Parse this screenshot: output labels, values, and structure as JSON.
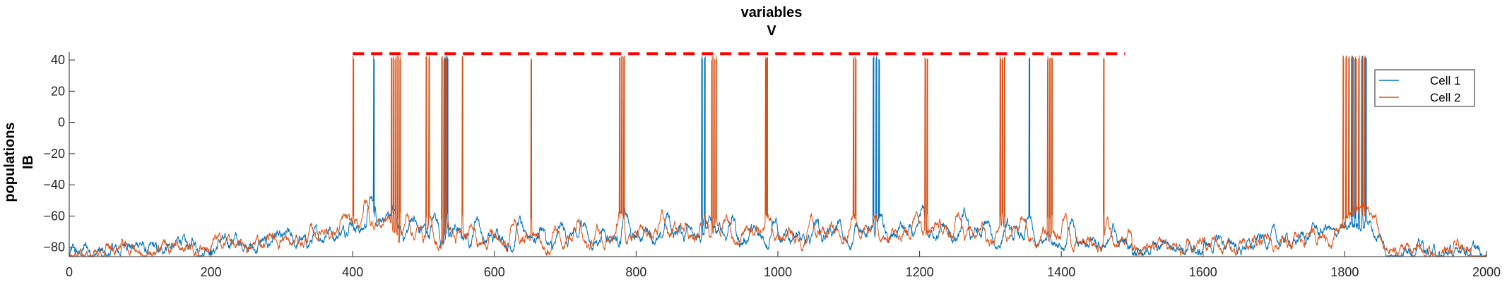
{
  "chart_data": {
    "type": "line",
    "title": [
      "variables",
      "V"
    ],
    "ylabel": [
      "populations",
      "IB"
    ],
    "xlabel": "",
    "xlim": [
      0,
      2000
    ],
    "ylim": [
      -86,
      45
    ],
    "xticks": [
      0,
      200,
      400,
      600,
      800,
      1000,
      1200,
      1400,
      1600,
      1800,
      2000
    ],
    "yticks": [
      -80,
      -60,
      -40,
      -20,
      0,
      20,
      40
    ],
    "grid": false,
    "legend_position": "top-right",
    "series": [
      {
        "name": "Cell 1",
        "color": "#0072BD",
        "baseline_segments": [
          [
            0,
            -86
          ],
          [
            50,
            -82
          ],
          [
            100,
            -80
          ],
          [
            200,
            -79
          ],
          [
            300,
            -76
          ],
          [
            380,
            -72
          ],
          [
            400,
            -68
          ],
          [
            430,
            -62
          ],
          [
            500,
            -72
          ],
          [
            600,
            -76
          ],
          [
            700,
            -76
          ],
          [
            800,
            -74
          ],
          [
            900,
            -72
          ],
          [
            1000,
            -76
          ],
          [
            1100,
            -74
          ],
          [
            1200,
            -72
          ],
          [
            1300,
            -74
          ],
          [
            1400,
            -78
          ],
          [
            1500,
            -80
          ],
          [
            1600,
            -80
          ],
          [
            1700,
            -76
          ],
          [
            1780,
            -70
          ],
          [
            1810,
            -64
          ],
          [
            1840,
            -70
          ],
          [
            1860,
            -82
          ],
          [
            2000,
            -84
          ]
        ],
        "spike_times": [
          430,
          530,
          532,
          534,
          893,
          897,
          1135,
          1139,
          1143,
          1355,
          1810,
          1815,
          1820,
          1825,
          1830
        ]
      },
      {
        "name": "Cell 2",
        "color": "#D95319",
        "baseline_segments": [
          [
            0,
            -86
          ],
          [
            50,
            -82
          ],
          [
            100,
            -81
          ],
          [
            200,
            -79
          ],
          [
            300,
            -76
          ],
          [
            380,
            -70
          ],
          [
            400,
            -64
          ],
          [
            430,
            -66
          ],
          [
            500,
            -74
          ],
          [
            600,
            -77
          ],
          [
            700,
            -77
          ],
          [
            800,
            -74
          ],
          [
            900,
            -70
          ],
          [
            1000,
            -75
          ],
          [
            1100,
            -73
          ],
          [
            1200,
            -70
          ],
          [
            1300,
            -72
          ],
          [
            1400,
            -76
          ],
          [
            1500,
            -80
          ],
          [
            1600,
            -80
          ],
          [
            1700,
            -78
          ],
          [
            1780,
            -72
          ],
          [
            1810,
            -56
          ],
          [
            1840,
            -60
          ],
          [
            1860,
            -82
          ],
          [
            2000,
            -84
          ]
        ],
        "spike_times": [
          401,
          455,
          458,
          461,
          464,
          467,
          504,
          508,
          526,
          529,
          532,
          555,
          652,
          777,
          780,
          783,
          907,
          910,
          913,
          983,
          985,
          1107,
          1110,
          1208,
          1211,
          1314,
          1317,
          1320,
          1381,
          1384,
          1387,
          1460,
          1798,
          1802,
          1806,
          1812,
          1816,
          1820,
          1824,
          1828
        ]
      }
    ],
    "annotations": {
      "reference_line": {
        "style": "dashed",
        "color": "#FF0000",
        "y": 44,
        "x_range": [
          400,
          1490
        ]
      }
    }
  }
}
